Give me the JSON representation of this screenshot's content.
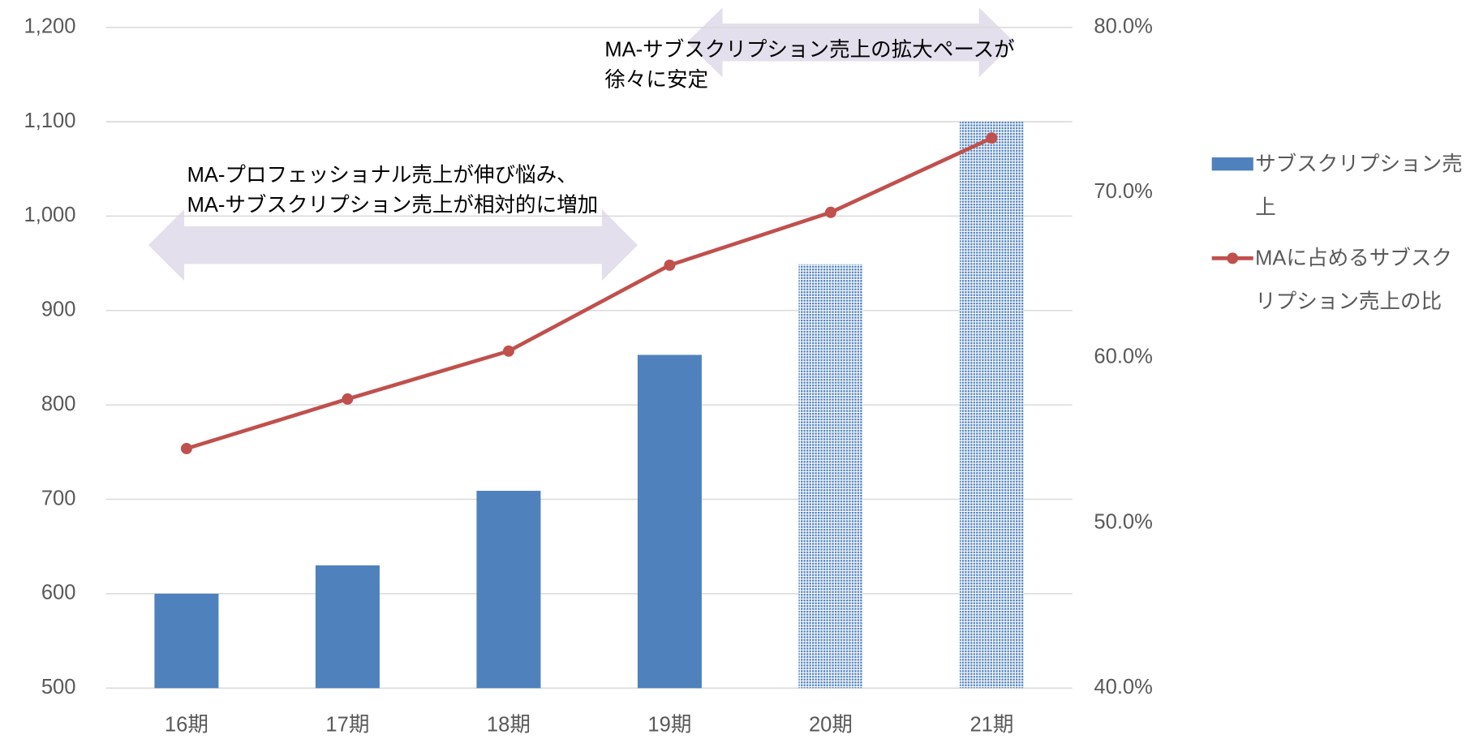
{
  "chart_data": {
    "type": "bar-line",
    "categories": [
      "16期",
      "17期",
      "18期",
      "19期",
      "20期",
      "21期"
    ],
    "series": [
      {
        "name": "サブスクリプション売上",
        "type": "bar",
        "color": "#4f81bd",
        "values": [
          600,
          630,
          709,
          853,
          949,
          1100
        ],
        "hatched": [
          false,
          false,
          false,
          false,
          true,
          true
        ]
      },
      {
        "name": "MAに占めるサブスクリプション売上の比率",
        "type": "line",
        "axis": "y2",
        "color": "#c0504d",
        "values": [
          54.5,
          57.5,
          60.4,
          65.6,
          68.8,
          73.3
        ]
      }
    ],
    "ylim": [
      500,
      1200
    ],
    "yticks": [
      500,
      600,
      700,
      800,
      900,
      {
        "value": 1000,
        "label": "1,000"
      },
      {
        "value": 1100,
        "label": "1,100"
      },
      {
        "value": 1200,
        "label": "1,200"
      }
    ],
    "y2lim": [
      40,
      80
    ],
    "y2ticks": [
      {
        "value": 40,
        "label": "40.0%"
      },
      {
        "value": 50,
        "label": "50.0%"
      },
      {
        "value": 60,
        "label": "60.0%"
      },
      {
        "value": 70,
        "label": "70.0%"
      },
      {
        "value": 80,
        "label": "80.0%"
      }
    ],
    "grid": true,
    "legend": "right",
    "annotations": [
      {
        "lines": [
          "MA-プロフェッショナル売上が伸び悩み、",
          "MA-サブスクリプション売上が相対的に増加"
        ]
      },
      {
        "lines": [
          "MA-サブスクリプション売上の拡大ペースが",
          "徐々に安定"
        ]
      }
    ]
  }
}
